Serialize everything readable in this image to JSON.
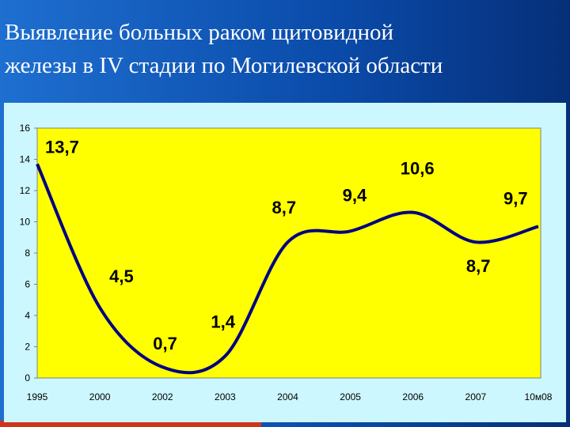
{
  "chart_data": {
    "type": "line",
    "title": [
      "Выявление больных раком щитовидной",
      "железы в IV стадии по Могилевской области"
    ],
    "categories": [
      "1995",
      "2000",
      "2002",
      "2003",
      "2004",
      "2005",
      "2006",
      "2007",
      "10м08"
    ],
    "values": [
      13.7,
      4.5,
      0.7,
      1.4,
      8.7,
      9.4,
      10.6,
      8.7,
      9.7
    ],
    "value_labels": [
      "13,7",
      "4,5",
      "0,7",
      "1,4",
      "8,7",
      "9,4",
      "10,6",
      "8,7",
      "9,7"
    ],
    "color": "#000080",
    "ylim": [
      0,
      16
    ],
    "yticks": [
      0,
      2,
      4,
      6,
      8,
      10,
      12,
      14,
      16
    ]
  }
}
